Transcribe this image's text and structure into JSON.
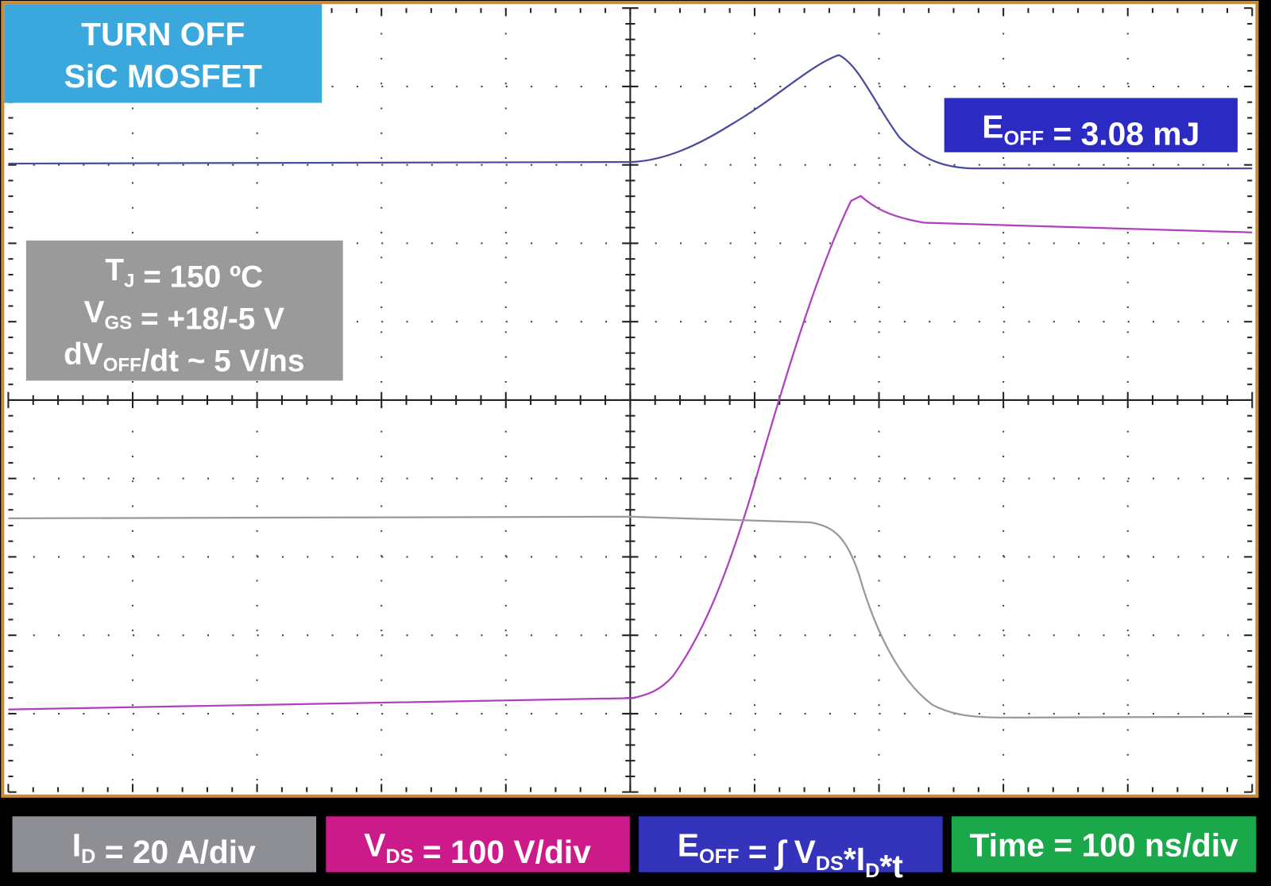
{
  "badge": {
    "lines": [
      "TURN OFF",
      "SiC MOSFET"
    ]
  },
  "result": [
    {
      "text": "E"
    },
    {
      "sub": "OFF"
    },
    {
      "text": " = 3.08 mJ"
    }
  ],
  "conditions": [
    [
      {
        "text": "T"
      },
      {
        "sub": "J"
      },
      {
        "text": " = 150 ºC"
      }
    ],
    [
      {
        "text": "V"
      },
      {
        "sub": "GS"
      },
      {
        "text": " = +18/-5 V"
      }
    ],
    [
      {
        "text": "dV"
      },
      {
        "sub": "OFF"
      },
      {
        "text": "/dt ~ 5 V/ns"
      }
    ]
  ],
  "legend": [
    [
      {
        "text": "I"
      },
      {
        "sub": "D"
      },
      {
        "text": " = 20 A/div"
      }
    ],
    [
      {
        "text": "V"
      },
      {
        "sub": "DS"
      },
      {
        "text": " = 100 V/div"
      }
    ],
    [
      {
        "text": "E"
      },
      {
        "sub": "OFF"
      },
      {
        "text": " = ∫ V"
      },
      {
        "sub": "DS"
      },
      {
        "text": "*I"
      },
      {
        "sub": "D"
      },
      {
        "text": "*t"
      }
    ],
    [
      {
        "text": "Time = 100 ns/div"
      }
    ]
  ]
}
